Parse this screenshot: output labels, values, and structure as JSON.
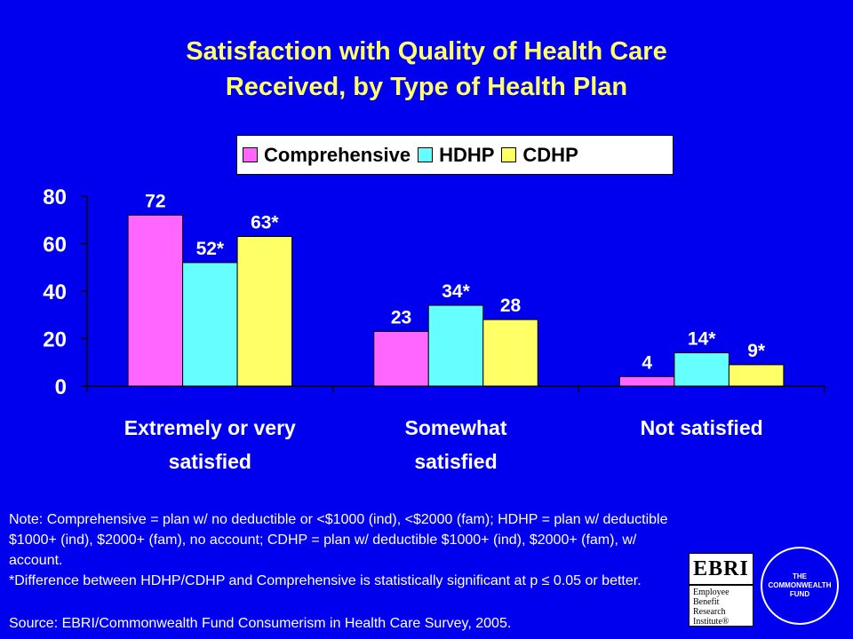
{
  "title": {
    "line1": "Satisfaction with Quality of Health Care",
    "line2": "Received, by Type of Health Plan"
  },
  "colors": {
    "background": "#0000ee",
    "title": "#ffff66",
    "comprehensive": "#ff66ff",
    "hdhp": "#66ffff",
    "cdhp": "#ffff66"
  },
  "chart_data": {
    "type": "bar",
    "categories": [
      [
        "Extremely or very",
        "satisfied"
      ],
      [
        "Somewhat",
        "satisfied"
      ],
      [
        "Not satisfied"
      ]
    ],
    "series": [
      {
        "name": "Comprehensive",
        "values": [
          72,
          23,
          4
        ],
        "labels": [
          "72",
          "23",
          "4"
        ]
      },
      {
        "name": "HDHP",
        "values": [
          52,
          34,
          14
        ],
        "labels": [
          "52*",
          "34*",
          "14*"
        ]
      },
      {
        "name": "CDHP",
        "values": [
          63,
          28,
          9
        ],
        "labels": [
          "63*",
          "28",
          "9*"
        ]
      }
    ],
    "ylim": [
      0,
      80
    ],
    "yticks": [
      0,
      20,
      40,
      60,
      80
    ],
    "legend": "top",
    "grid": false
  },
  "note": {
    "line1": "Note: Comprehensive = plan w/ no deductible or <$1000 (ind), <$2000 (fam); HDHP = plan w/ deductible $1000+ (ind), $2000+ (fam), no account; CDHP = plan w/ deductible $1000+ (ind), $2000+ (fam), w/ account.",
    "line2": "*Difference between HDHP/CDHP and Comprehensive is statistically significant at p ≤ 0.05 or better."
  },
  "source": "Source: EBRI/Commonwealth Fund Consumerism in Health Care Survey, 2005.",
  "logos": {
    "ebri_abbr": "EBRI",
    "ebri_lines": [
      "Employee",
      "Benefit",
      "Research",
      "Institute®"
    ],
    "cwf_lines": [
      "THE",
      "COMMONWEALTH",
      "FUND"
    ]
  }
}
